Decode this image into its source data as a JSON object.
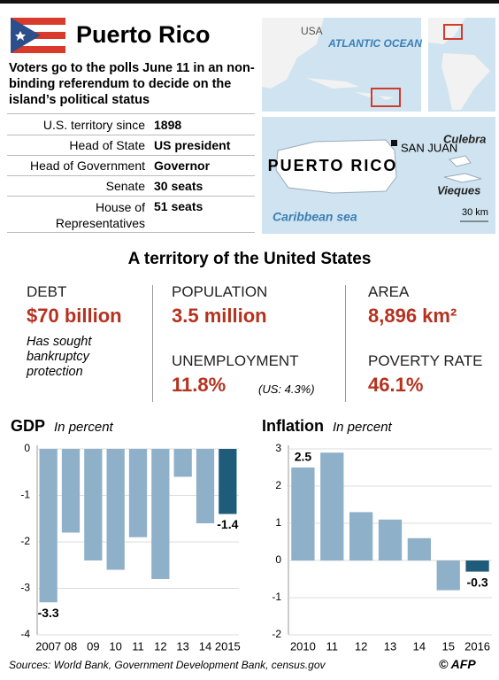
{
  "header": {
    "title": "Puerto Rico",
    "subtitle": "Voters go to the polls June 11 in an non-binding referendum to decide on the island’s political status"
  },
  "table": {
    "rows": [
      [
        "U.S. territory since",
        "1898"
      ],
      [
        "Head of State",
        "US president"
      ],
      [
        "Head of Government",
        "Governor"
      ],
      [
        "Senate",
        "30 seats"
      ],
      [
        "House of Representatives",
        "51 seats"
      ]
    ]
  },
  "map": {
    "usa": "USA",
    "ocean": "ATLANTIC OCEAN",
    "island": "PUERTO RICO",
    "capital": "SAN JUAN",
    "culebra": "Culebra",
    "vieques": "Vieques",
    "sea": "Caribbean sea",
    "scale": "30 km"
  },
  "section_title": "A territory of the United States",
  "stats": [
    {
      "label": "DEBT",
      "value": "$70 billion",
      "note": "Has sought bankruptcy protection"
    },
    {
      "label": "POPULATION",
      "value": "3.5 million"
    },
    {
      "label": "AREA",
      "value": "8,896 km²"
    },
    {
      "label": "UNEMPLOYMENT",
      "value": "11.8%",
      "note": "(US: 4.3%)"
    },
    {
      "label": "POVERTY RATE",
      "value": "46.1%"
    }
  ],
  "chart_data": [
    {
      "type": "bar",
      "title": "GDP",
      "subtitle": "In percent",
      "categories": [
        "2007",
        "08",
        "09",
        "10",
        "11",
        "12",
        "13",
        "14",
        "2015"
      ],
      "values": [
        -3.3,
        -1.8,
        -2.4,
        -2.6,
        -1.9,
        -2.8,
        -0.6,
        -1.6,
        -1.4
      ],
      "value_labels": [
        "-3.3",
        null,
        null,
        null,
        null,
        null,
        null,
        null,
        "-1.4"
      ],
      "colors": [
        "#8fb0c9",
        "#8fb0c9",
        "#8fb0c9",
        "#8fb0c9",
        "#8fb0c9",
        "#8fb0c9",
        "#8fb0c9",
        "#8fb0c9",
        "#1f5c7a"
      ],
      "ylim": [
        -4,
        0
      ],
      "yticks": [
        0,
        -1,
        -2,
        -3,
        -4
      ],
      "grid": true
    },
    {
      "type": "bar",
      "title": "Inflation",
      "subtitle": "In percent",
      "categories": [
        "2010",
        "11",
        "12",
        "13",
        "14",
        "15",
        "2016"
      ],
      "values": [
        2.5,
        2.9,
        1.3,
        1.1,
        0.6,
        -0.8,
        -0.3
      ],
      "value_labels": [
        "2.5",
        null,
        null,
        null,
        null,
        null,
        "-0.3"
      ],
      "colors": [
        "#8fb0c9",
        "#8fb0c9",
        "#8fb0c9",
        "#8fb0c9",
        "#8fb0c9",
        "#8fb0c9",
        "#1f5c7a"
      ],
      "ylim": [
        -2,
        3
      ],
      "yticks": [
        3,
        2,
        1,
        0,
        -1,
        -2
      ],
      "grid": true
    }
  ],
  "footer": {
    "source": "Sources: World Bank, Government Development Bank, census.gov",
    "credit": "© AFP"
  }
}
